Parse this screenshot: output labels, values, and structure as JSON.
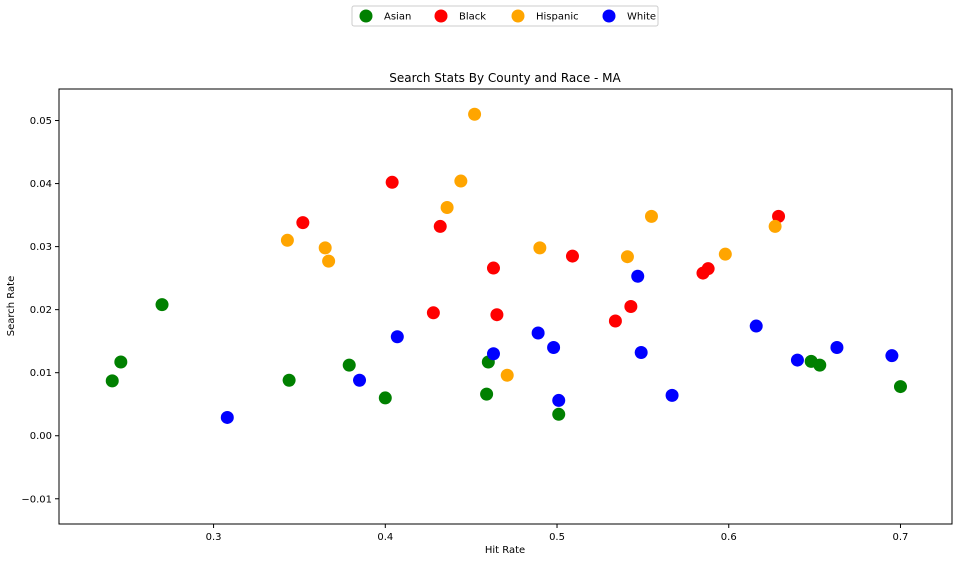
{
  "chart_data": {
    "type": "scatter",
    "title": "Search Stats By County and Race - MA",
    "xlabel": "Hit Rate",
    "ylabel": "Search Rate",
    "xlim": [
      0.21,
      0.73
    ],
    "ylim": [
      -0.014,
      0.055
    ],
    "xticks": [
      "0.3",
      "0.4",
      "0.5",
      "0.6",
      "0.7"
    ],
    "yticks": [
      "−0.01",
      "0.00",
      "0.01",
      "0.02",
      "0.03",
      "0.04",
      "0.05"
    ],
    "grid": false,
    "legend_position": "top-center",
    "series": [
      {
        "name": "Asian",
        "color": "#008000",
        "points": [
          [
            0.241,
            0.0087
          ],
          [
            0.246,
            0.0117
          ],
          [
            0.27,
            0.0208
          ],
          [
            0.344,
            0.0088
          ],
          [
            0.379,
            0.0112
          ],
          [
            0.4,
            0.006
          ],
          [
            0.459,
            0.0066
          ],
          [
            0.46,
            0.0117
          ],
          [
            0.501,
            0.0034
          ],
          [
            0.648,
            0.0118
          ],
          [
            0.653,
            0.0112
          ],
          [
            0.7,
            0.0078
          ]
        ]
      },
      {
        "name": "Black",
        "color": "#ff0000",
        "points": [
          [
            0.352,
            0.0338
          ],
          [
            0.404,
            0.0402
          ],
          [
            0.428,
            0.0195
          ],
          [
            0.432,
            0.0332
          ],
          [
            0.463,
            0.0266
          ],
          [
            0.465,
            0.0192
          ],
          [
            0.509,
            0.0285
          ],
          [
            0.534,
            0.0182
          ],
          [
            0.543,
            0.0205
          ],
          [
            0.585,
            0.0258
          ],
          [
            0.588,
            0.0265
          ],
          [
            0.629,
            0.0348
          ]
        ]
      },
      {
        "name": "Hispanic",
        "color": "#ffa500",
        "points": [
          [
            0.343,
            0.031
          ],
          [
            0.365,
            0.0298
          ],
          [
            0.367,
            0.0277
          ],
          [
            0.436,
            0.0362
          ],
          [
            0.444,
            0.0404
          ],
          [
            0.452,
            0.051
          ],
          [
            0.471,
            0.0096
          ],
          [
            0.49,
            0.0298
          ],
          [
            0.541,
            0.0284
          ],
          [
            0.555,
            0.0348
          ],
          [
            0.598,
            0.0288
          ],
          [
            0.627,
            0.0332
          ]
        ]
      },
      {
        "name": "White",
        "color": "#0000ff",
        "points": [
          [
            0.308,
            0.0029
          ],
          [
            0.385,
            0.0088
          ],
          [
            0.407,
            0.0157
          ],
          [
            0.463,
            0.013
          ],
          [
            0.489,
            0.0163
          ],
          [
            0.498,
            0.014
          ],
          [
            0.501,
            0.0056
          ],
          [
            0.547,
            0.0253
          ],
          [
            0.549,
            0.0132
          ],
          [
            0.567,
            0.0064
          ],
          [
            0.616,
            0.0174
          ],
          [
            0.64,
            0.012
          ],
          [
            0.663,
            0.014
          ],
          [
            0.695,
            0.0127
          ]
        ]
      }
    ]
  }
}
